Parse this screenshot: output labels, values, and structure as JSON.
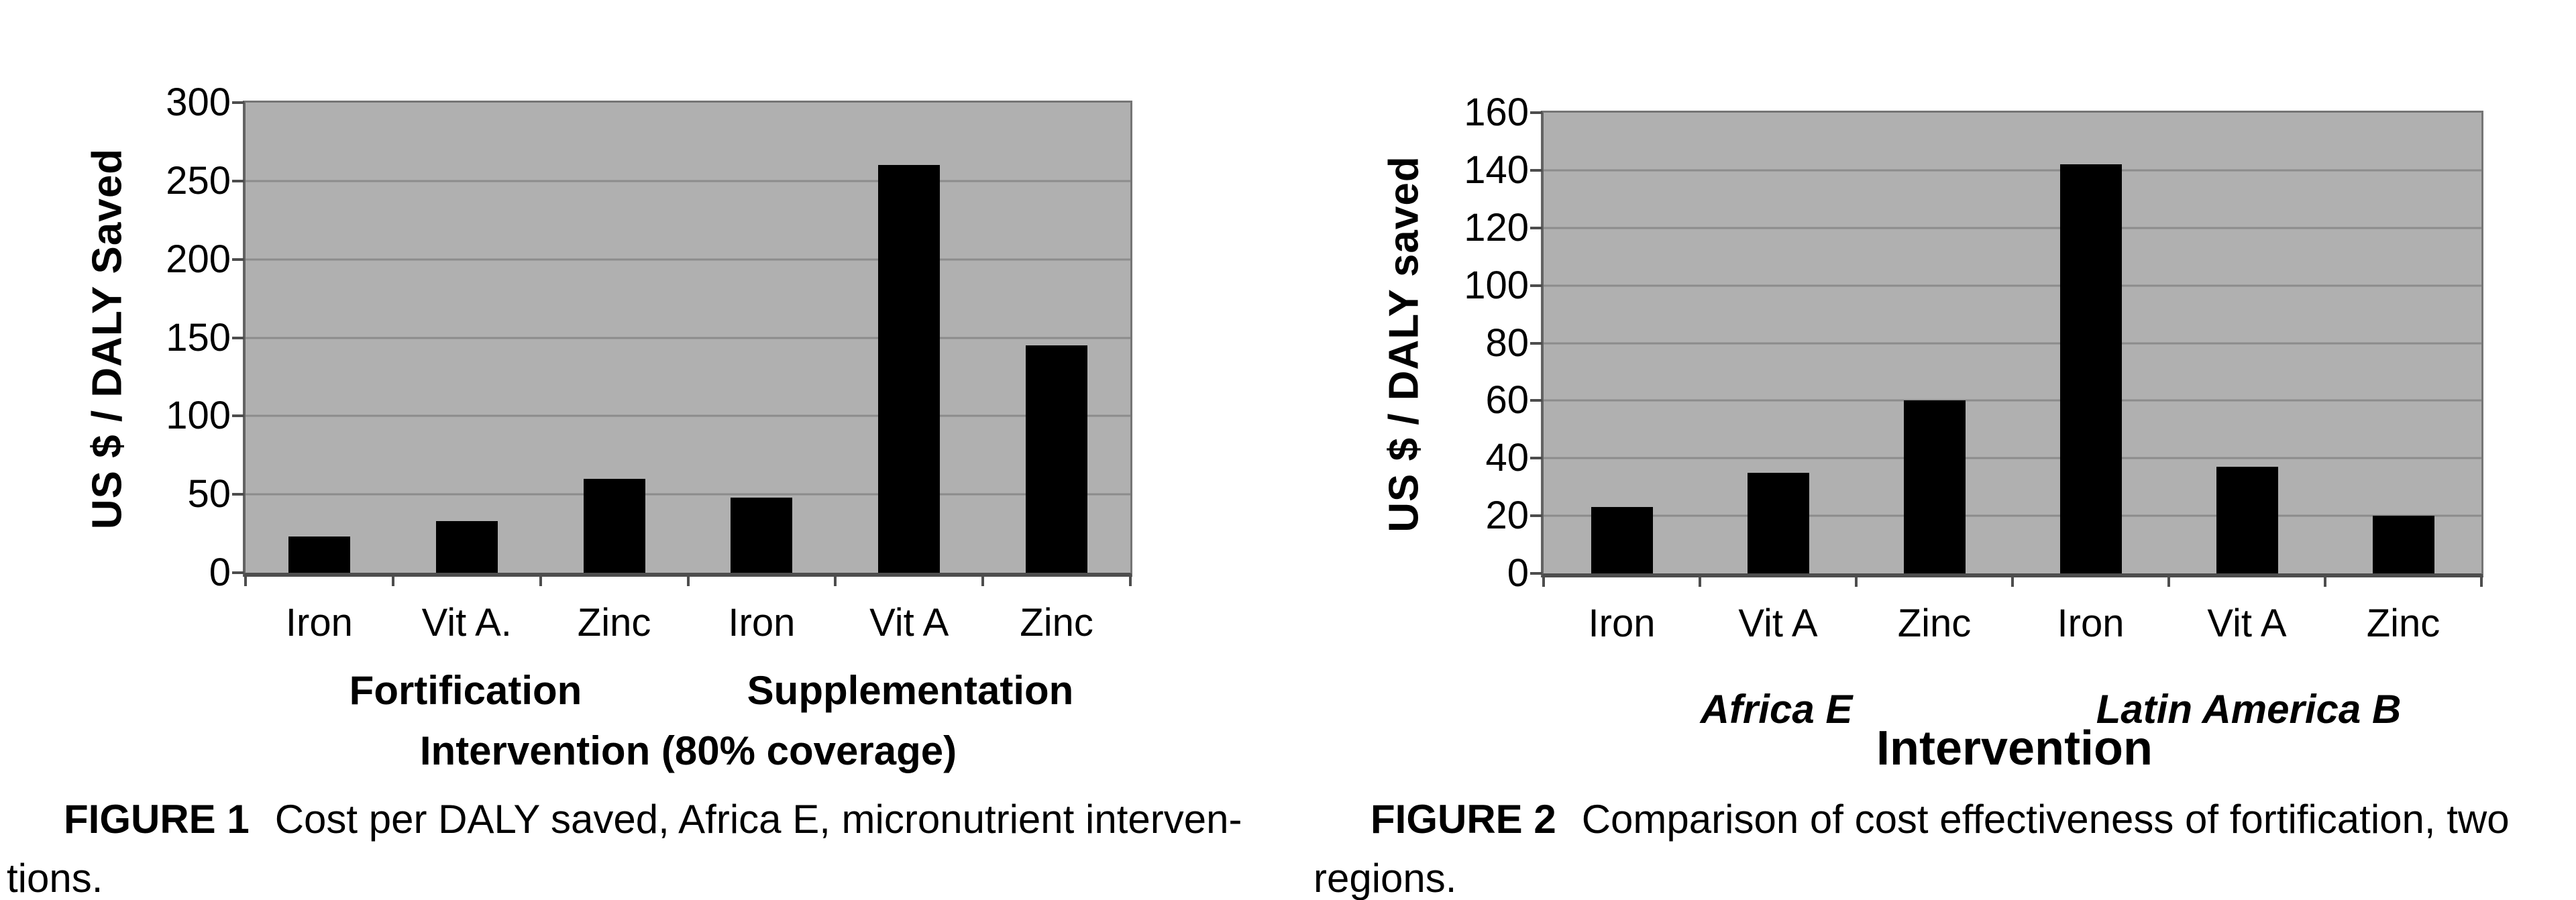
{
  "page": {
    "background": "#ffffff",
    "text_color": "#000000"
  },
  "figures": [
    {
      "name": "Figure 1",
      "caption_label": "FIGURE 1",
      "caption_body": "Cost per DALY saved, Africa E, micronutrient interven-",
      "caption_line2": "tions."
    },
    {
      "name": "Figure 2",
      "caption_label": "FIGURE 2",
      "caption_body": "Comparison of cost effectiveness of fortification, two",
      "caption_line2": "regions."
    }
  ],
  "chart_data": [
    {
      "type": "bar",
      "title": "FIGURE 1 Cost per DALY saved, Africa E, micronutrient interventions.",
      "categories": [
        "Iron",
        "Vit A.",
        "Zinc",
        "Iron",
        "Vit A",
        "Zinc"
      ],
      "values": [
        23,
        33,
        60,
        48,
        260,
        145
      ],
      "group_labels": [
        "Fortification",
        "Supplementation"
      ],
      "category_groups": [
        {
          "label": "Fortification",
          "categories": [
            "Iron",
            "Vit A.",
            "Zinc"
          ],
          "values": [
            23,
            33,
            60
          ]
        },
        {
          "label": "Supplementation",
          "categories": [
            "Iron",
            "Vit A",
            "Zinc"
          ],
          "values": [
            48,
            260,
            145
          ]
        }
      ],
      "xlabel": "Intervention (80% coverage)",
      "ylabel": "US $ / DALY Saved",
      "ylim": [
        0,
        300
      ],
      "ytick_step": 50,
      "yticks": [
        0,
        50,
        100,
        150,
        200,
        250,
        300
      ],
      "grid": true,
      "legend": "none",
      "bar_color": "#000000",
      "plot_background": "#b0b0b0",
      "gridline_color": "#8c8c8c"
    },
    {
      "type": "bar",
      "title": "FIGURE 2 Comparison of cost effectiveness of fortification, two regions.",
      "categories": [
        "Iron",
        "Vit A",
        "Zinc",
        "Iron",
        "Vit A",
        "Zinc"
      ],
      "values": [
        23,
        35,
        60,
        142,
        37,
        20
      ],
      "group_labels": [
        "Africa E",
        "Latin America B"
      ],
      "category_groups": [
        {
          "label": "Africa E",
          "categories": [
            "Iron",
            "Vit A",
            "Zinc"
          ],
          "values": [
            23,
            35,
            60
          ]
        },
        {
          "label": "Latin America B",
          "categories": [
            "Iron",
            "Vit A",
            "Zinc"
          ],
          "values": [
            142,
            37,
            20
          ]
        }
      ],
      "xlabel": "Intervention",
      "ylabel": "US $ / DALY saved",
      "ylim": [
        0,
        160
      ],
      "ytick_step": 20,
      "yticks": [
        0,
        20,
        40,
        60,
        80,
        100,
        120,
        140,
        160
      ],
      "grid": true,
      "legend": "none",
      "bar_color": "#000000",
      "plot_background": "#b0b0b0",
      "gridline_color": "#8c8c8c"
    }
  ]
}
